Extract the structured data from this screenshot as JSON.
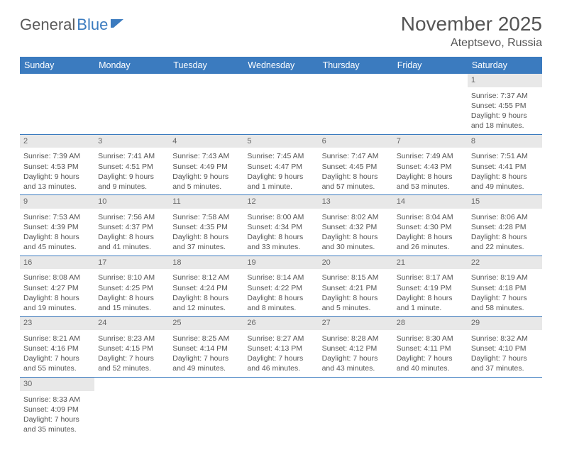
{
  "logo": {
    "text1": "General",
    "text2": "Blue"
  },
  "title": "November 2025",
  "subtitle": "Ateptsevo, Russia",
  "colors": {
    "header_bg": "#3b7bbf",
    "daynum_bg": "#e8e8e8",
    "border": "#3b7bbf",
    "text": "#555555"
  },
  "weekdays": [
    "Sunday",
    "Monday",
    "Tuesday",
    "Wednesday",
    "Thursday",
    "Friday",
    "Saturday"
  ],
  "weeks": [
    [
      null,
      null,
      null,
      null,
      null,
      null,
      {
        "n": "1",
        "sr": "Sunrise: 7:37 AM",
        "ss": "Sunset: 4:55 PM",
        "dl": "Daylight: 9 hours and 18 minutes."
      }
    ],
    [
      {
        "n": "2",
        "sr": "Sunrise: 7:39 AM",
        "ss": "Sunset: 4:53 PM",
        "dl": "Daylight: 9 hours and 13 minutes."
      },
      {
        "n": "3",
        "sr": "Sunrise: 7:41 AM",
        "ss": "Sunset: 4:51 PM",
        "dl": "Daylight: 9 hours and 9 minutes."
      },
      {
        "n": "4",
        "sr": "Sunrise: 7:43 AM",
        "ss": "Sunset: 4:49 PM",
        "dl": "Daylight: 9 hours and 5 minutes."
      },
      {
        "n": "5",
        "sr": "Sunrise: 7:45 AM",
        "ss": "Sunset: 4:47 PM",
        "dl": "Daylight: 9 hours and 1 minute."
      },
      {
        "n": "6",
        "sr": "Sunrise: 7:47 AM",
        "ss": "Sunset: 4:45 PM",
        "dl": "Daylight: 8 hours and 57 minutes."
      },
      {
        "n": "7",
        "sr": "Sunrise: 7:49 AM",
        "ss": "Sunset: 4:43 PM",
        "dl": "Daylight: 8 hours and 53 minutes."
      },
      {
        "n": "8",
        "sr": "Sunrise: 7:51 AM",
        "ss": "Sunset: 4:41 PM",
        "dl": "Daylight: 8 hours and 49 minutes."
      }
    ],
    [
      {
        "n": "9",
        "sr": "Sunrise: 7:53 AM",
        "ss": "Sunset: 4:39 PM",
        "dl": "Daylight: 8 hours and 45 minutes."
      },
      {
        "n": "10",
        "sr": "Sunrise: 7:56 AM",
        "ss": "Sunset: 4:37 PM",
        "dl": "Daylight: 8 hours and 41 minutes."
      },
      {
        "n": "11",
        "sr": "Sunrise: 7:58 AM",
        "ss": "Sunset: 4:35 PM",
        "dl": "Daylight: 8 hours and 37 minutes."
      },
      {
        "n": "12",
        "sr": "Sunrise: 8:00 AM",
        "ss": "Sunset: 4:34 PM",
        "dl": "Daylight: 8 hours and 33 minutes."
      },
      {
        "n": "13",
        "sr": "Sunrise: 8:02 AM",
        "ss": "Sunset: 4:32 PM",
        "dl": "Daylight: 8 hours and 30 minutes."
      },
      {
        "n": "14",
        "sr": "Sunrise: 8:04 AM",
        "ss": "Sunset: 4:30 PM",
        "dl": "Daylight: 8 hours and 26 minutes."
      },
      {
        "n": "15",
        "sr": "Sunrise: 8:06 AM",
        "ss": "Sunset: 4:28 PM",
        "dl": "Daylight: 8 hours and 22 minutes."
      }
    ],
    [
      {
        "n": "16",
        "sr": "Sunrise: 8:08 AM",
        "ss": "Sunset: 4:27 PM",
        "dl": "Daylight: 8 hours and 19 minutes."
      },
      {
        "n": "17",
        "sr": "Sunrise: 8:10 AM",
        "ss": "Sunset: 4:25 PM",
        "dl": "Daylight: 8 hours and 15 minutes."
      },
      {
        "n": "18",
        "sr": "Sunrise: 8:12 AM",
        "ss": "Sunset: 4:24 PM",
        "dl": "Daylight: 8 hours and 12 minutes."
      },
      {
        "n": "19",
        "sr": "Sunrise: 8:14 AM",
        "ss": "Sunset: 4:22 PM",
        "dl": "Daylight: 8 hours and 8 minutes."
      },
      {
        "n": "20",
        "sr": "Sunrise: 8:15 AM",
        "ss": "Sunset: 4:21 PM",
        "dl": "Daylight: 8 hours and 5 minutes."
      },
      {
        "n": "21",
        "sr": "Sunrise: 8:17 AM",
        "ss": "Sunset: 4:19 PM",
        "dl": "Daylight: 8 hours and 1 minute."
      },
      {
        "n": "22",
        "sr": "Sunrise: 8:19 AM",
        "ss": "Sunset: 4:18 PM",
        "dl": "Daylight: 7 hours and 58 minutes."
      }
    ],
    [
      {
        "n": "23",
        "sr": "Sunrise: 8:21 AM",
        "ss": "Sunset: 4:16 PM",
        "dl": "Daylight: 7 hours and 55 minutes."
      },
      {
        "n": "24",
        "sr": "Sunrise: 8:23 AM",
        "ss": "Sunset: 4:15 PM",
        "dl": "Daylight: 7 hours and 52 minutes."
      },
      {
        "n": "25",
        "sr": "Sunrise: 8:25 AM",
        "ss": "Sunset: 4:14 PM",
        "dl": "Daylight: 7 hours and 49 minutes."
      },
      {
        "n": "26",
        "sr": "Sunrise: 8:27 AM",
        "ss": "Sunset: 4:13 PM",
        "dl": "Daylight: 7 hours and 46 minutes."
      },
      {
        "n": "27",
        "sr": "Sunrise: 8:28 AM",
        "ss": "Sunset: 4:12 PM",
        "dl": "Daylight: 7 hours and 43 minutes."
      },
      {
        "n": "28",
        "sr": "Sunrise: 8:30 AM",
        "ss": "Sunset: 4:11 PM",
        "dl": "Daylight: 7 hours and 40 minutes."
      },
      {
        "n": "29",
        "sr": "Sunrise: 8:32 AM",
        "ss": "Sunset: 4:10 PM",
        "dl": "Daylight: 7 hours and 37 minutes."
      }
    ],
    [
      {
        "n": "30",
        "sr": "Sunrise: 8:33 AM",
        "ss": "Sunset: 4:09 PM",
        "dl": "Daylight: 7 hours and 35 minutes."
      },
      null,
      null,
      null,
      null,
      null,
      null
    ]
  ]
}
